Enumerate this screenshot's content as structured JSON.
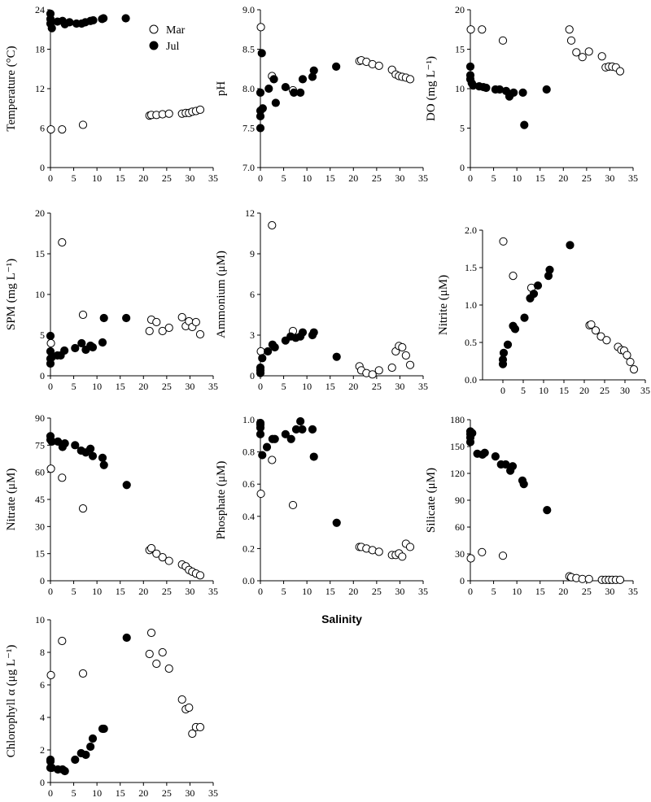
{
  "xlabel": "Salinity",
  "legend": {
    "mar_label": "Mar",
    "jul_label": "Jul"
  },
  "colors": {
    "mar_fill": "#ffffff",
    "jul_fill": "#000000",
    "stroke": "#000000"
  },
  "chart_data": [
    {
      "type": "scatter",
      "name": "temperature",
      "ylabel": "Temperature (°C)",
      "ylim": [
        0,
        24
      ],
      "yticks": [
        0,
        6,
        12,
        18,
        24
      ],
      "ytick_labels": [
        "0",
        "6",
        "12",
        "18",
        "24"
      ],
      "xlim": [
        0,
        35
      ],
      "xticks": [
        0,
        5,
        10,
        15,
        20,
        25,
        30,
        35
      ],
      "xtick_labels": [
        "0",
        "5",
        "10",
        "15",
        "20",
        "25",
        "30",
        "35"
      ],
      "series": [
        {
          "name": "Mar",
          "x": [
            0.1,
            2.5,
            7,
            21.3,
            21.7,
            22.8,
            24.1,
            25.5,
            28.3,
            29.1,
            29.8,
            30.5,
            31.3,
            32.2
          ],
          "y": [
            5.8,
            5.8,
            6.5,
            7.9,
            8.0,
            8.0,
            8.1,
            8.2,
            8.2,
            8.3,
            8.3,
            8.5,
            8.6,
            8.8
          ]
        },
        {
          "name": "Jul",
          "x": [
            0,
            0,
            0,
            0.3,
            1.5,
            2.6,
            3.1,
            4.1,
            5.6,
            6.7,
            7.5,
            8.6,
            9.2,
            11.1,
            11.4,
            16.2
          ],
          "y": [
            23.4,
            22.6,
            21.9,
            21.2,
            22.2,
            22.3,
            21.8,
            22.1,
            21.9,
            21.9,
            22.1,
            22.3,
            22.4,
            22.6,
            22.7,
            22.7
          ]
        }
      ]
    },
    {
      "type": "scatter",
      "name": "ph",
      "ylabel": "pH",
      "ylim": [
        7.0,
        9.0
      ],
      "yticks": [
        7.0,
        7.5,
        8.0,
        8.5,
        9.0
      ],
      "ytick_labels": [
        "7.0",
        "7.5",
        "8.0",
        "8.5",
        "9.0"
      ],
      "xlim": [
        0,
        35
      ],
      "xticks": [
        0,
        5,
        10,
        15,
        20,
        25,
        30,
        35
      ],
      "xtick_labels": [
        "0",
        "5",
        "10",
        "15",
        "20",
        "25",
        "30",
        "35"
      ],
      "series": [
        {
          "name": "Mar",
          "x": [
            0.1,
            2.5,
            7,
            21.3,
            21.7,
            22.8,
            24.1,
            25.5,
            28.3,
            29.1,
            29.8,
            30.5,
            31.3,
            32.2
          ],
          "y": [
            8.78,
            8.16,
            7.98,
            8.35,
            8.36,
            8.34,
            8.31,
            8.29,
            8.24,
            8.18,
            8.16,
            8.15,
            8.14,
            8.12
          ]
        },
        {
          "name": "Jul",
          "x": [
            0,
            0,
            0,
            0,
            0.3,
            0.5,
            1.8,
            2.9,
            3.3,
            5.4,
            7.2,
            8.6,
            9.1,
            11.2,
            11.5,
            16.3
          ],
          "y": [
            7.5,
            7.65,
            7.72,
            7.95,
            8.45,
            7.75,
            8.0,
            8.12,
            7.82,
            8.02,
            7.95,
            7.95,
            8.12,
            8.15,
            8.23,
            8.28
          ]
        }
      ]
    },
    {
      "type": "scatter",
      "name": "do",
      "ylabel": "DO (mg L⁻¹)",
      "ylim": [
        0,
        20
      ],
      "yticks": [
        0,
        5,
        10,
        15,
        20
      ],
      "ytick_labels": [
        "0",
        "5",
        "10",
        "15",
        "20"
      ],
      "xlim": [
        0,
        35
      ],
      "xticks": [
        0,
        5,
        10,
        15,
        20,
        25,
        30,
        35
      ],
      "xtick_labels": [
        "0",
        "5",
        "10",
        "15",
        "20",
        "25",
        "30",
        "35"
      ],
      "series": [
        {
          "name": "Mar",
          "x": [
            0.1,
            2.5,
            7,
            21.3,
            21.7,
            22.8,
            24.1,
            25.5,
            28.3,
            29.1,
            29.8,
            30.5,
            31.3,
            32.2
          ],
          "y": [
            17.5,
            17.5,
            16.1,
            17.5,
            16.1,
            14.6,
            14.0,
            14.7,
            14.1,
            12.7,
            12.8,
            12.8,
            12.7,
            12.2
          ]
        },
        {
          "name": "Jul",
          "x": [
            0,
            0,
            0,
            0.3,
            0.6,
            1.9,
            2.8,
            3.4,
            5.4,
            6.3,
            7.7,
            8.4,
            9.3,
            11.3,
            11.6,
            16.4
          ],
          "y": [
            12.8,
            11.7,
            11.2,
            10.7,
            10.4,
            10.3,
            10.2,
            10.1,
            9.9,
            9.9,
            9.7,
            9.0,
            9.5,
            9.5,
            5.4,
            9.9
          ]
        }
      ]
    },
    {
      "type": "scatter",
      "name": "spm",
      "ylabel": "SPM (mg L⁻¹)",
      "ylim": [
        0,
        20
      ],
      "yticks": [
        0,
        5,
        10,
        15,
        20
      ],
      "ytick_labels": [
        "0",
        "5",
        "10",
        "15",
        "20"
      ],
      "xlim": [
        0,
        35
      ],
      "xticks": [
        0,
        5,
        10,
        15,
        20,
        25,
        30,
        35
      ],
      "xtick_labels": [
        "0",
        "5",
        "10",
        "15",
        "20",
        "25",
        "30",
        "35"
      ],
      "series": [
        {
          "name": "Mar",
          "x": [
            0.1,
            2.5,
            7,
            21.3,
            21.7,
            22.8,
            24.1,
            25.5,
            28.3,
            29.1,
            29.8,
            30.5,
            31.3,
            32.2
          ],
          "y": [
            4.0,
            16.4,
            7.5,
            5.5,
            6.9,
            6.6,
            5.5,
            5.9,
            7.2,
            6.1,
            6.7,
            6.0,
            6.6,
            5.1
          ]
        },
        {
          "name": "Jul",
          "x": [
            0,
            0,
            0,
            0,
            0.3,
            1.5,
            2.2,
            3.0,
            5.3,
            6.7,
            7.6,
            8.6,
            9.1,
            11.2,
            11.5,
            16.3
          ],
          "y": [
            1.5,
            2.1,
            3.0,
            4.9,
            2.3,
            2.5,
            2.5,
            3.1,
            3.4,
            4.0,
            3.2,
            3.7,
            3.5,
            4.1,
            7.1,
            7.1
          ]
        }
      ]
    },
    {
      "type": "scatter",
      "name": "ammonium",
      "ylabel": "Ammonium (μM)",
      "ylim": [
        0,
        12
      ],
      "yticks": [
        0,
        3,
        6,
        9,
        12
      ],
      "ytick_labels": [
        "0",
        "3",
        "6",
        "9",
        "12"
      ],
      "xlim": [
        0,
        35
      ],
      "xticks": [
        0,
        5,
        10,
        15,
        20,
        25,
        30,
        35
      ],
      "xtick_labels": [
        "0",
        "5",
        "10",
        "15",
        "20",
        "25",
        "30",
        "35"
      ],
      "series": [
        {
          "name": "Mar",
          "x": [
            0.1,
            2.5,
            7,
            21.3,
            21.7,
            22.8,
            24.1,
            25.5,
            28.3,
            29.1,
            29.8,
            30.5,
            31.3,
            32.2
          ],
          "y": [
            1.8,
            11.1,
            3.3,
            0.7,
            0.4,
            0.2,
            0.1,
            0.4,
            0.6,
            1.8,
            2.2,
            2.1,
            1.5,
            0.8
          ]
        },
        {
          "name": "Jul",
          "x": [
            0,
            0,
            0,
            0.4,
            1.6,
            2.6,
            3.1,
            5.4,
            6.5,
            7.6,
            8.6,
            9.1,
            11.2,
            11.5,
            16.4
          ],
          "y": [
            0.2,
            0.4,
            0.6,
            1.3,
            1.8,
            2.3,
            2.1,
            2.6,
            2.9,
            2.8,
            2.9,
            3.2,
            3.0,
            3.2,
            1.4
          ]
        }
      ]
    },
    {
      "type": "scatter",
      "name": "nitrite",
      "ylabel": "Nitrite (μM)",
      "ylim": [
        0,
        2.0
      ],
      "yticks": [
        0,
        0.5,
        1.0,
        1.5,
        2.0
      ],
      "ytick_labels": [
        "0.0",
        "0.5",
        "1.0",
        "1.5",
        "2.0"
      ],
      "xlim": [
        -5,
        35
      ],
      "xticks": [
        0,
        5,
        10,
        15,
        20,
        25,
        30,
        35
      ],
      "xtick_labels": [
        "0",
        "5",
        "10",
        "15",
        "20",
        "25",
        "30",
        "35"
      ],
      "series": [
        {
          "name": "Mar",
          "x": [
            0.1,
            2.5,
            7,
            21.3,
            21.7,
            22.8,
            24.1,
            25.5,
            28.3,
            29.1,
            29.8,
            30.5,
            31.3,
            32.2
          ],
          "y": [
            1.85,
            1.39,
            1.23,
            0.73,
            0.74,
            0.66,
            0.58,
            0.53,
            0.44,
            0.4,
            0.39,
            0.33,
            0.24,
            0.14
          ]
        },
        {
          "name": "Jul",
          "x": [
            0,
            0,
            0.2,
            1.2,
            2.5,
            3.0,
            5.3,
            6.7,
            7.6,
            8.6,
            11.2,
            11.5,
            16.5
          ],
          "y": [
            0.21,
            0.27,
            0.36,
            0.47,
            0.72,
            0.68,
            0.83,
            1.09,
            1.15,
            1.26,
            1.39,
            1.47,
            1.8
          ]
        }
      ]
    },
    {
      "type": "scatter",
      "name": "nitrate",
      "ylabel": "Nitrate (μM)",
      "ylim": [
        0,
        90
      ],
      "yticks": [
        0,
        15,
        30,
        45,
        60,
        75,
        90
      ],
      "ytick_labels": [
        "0",
        "15",
        "30",
        "45",
        "60",
        "75",
        "90"
      ],
      "xlim": [
        0,
        35
      ],
      "xticks": [
        0,
        5,
        10,
        15,
        20,
        25,
        30,
        35
      ],
      "xtick_labels": [
        "0",
        "5",
        "10",
        "15",
        "20",
        "25",
        "30",
        "35"
      ],
      "series": [
        {
          "name": "Mar",
          "x": [
            0.1,
            2.5,
            7,
            21.3,
            21.7,
            22.8,
            24.1,
            25.5,
            28.3,
            29.1,
            29.8,
            30.5,
            31.3,
            32.2
          ],
          "y": [
            62,
            57,
            40,
            17,
            18,
            15,
            13,
            11,
            9,
            8,
            6,
            5,
            4,
            3
          ]
        },
        {
          "name": "Jul",
          "x": [
            0,
            0,
            0.3,
            1.6,
            2.6,
            3.1,
            5.3,
            6.6,
            7.6,
            8.6,
            9.1,
            11.2,
            11.5,
            16.4
          ],
          "y": [
            80,
            78,
            77,
            77,
            74,
            76,
            75,
            72,
            71,
            73,
            69,
            68,
            64,
            53
          ]
        }
      ]
    },
    {
      "type": "scatter",
      "name": "phosphate",
      "ylabel": "Phosphate (μM)",
      "ylim": [
        0,
        1.0
      ],
      "yticks": [
        0,
        0.2,
        0.4,
        0.6,
        0.8,
        1.0
      ],
      "ytick_labels": [
        "0.0",
        "0.2",
        "0.4",
        "0.6",
        "0.8",
        "1.0"
      ],
      "xlim": [
        0,
        35
      ],
      "xticks": [
        0,
        5,
        10,
        15,
        20,
        25,
        30,
        35
      ],
      "xtick_labels": [
        "0",
        "5",
        "10",
        "15",
        "20",
        "25",
        "30",
        "35"
      ],
      "series": [
        {
          "name": "Mar",
          "x": [
            0.1,
            2.5,
            7,
            21.3,
            21.7,
            22.8,
            24.1,
            25.5,
            28.3,
            29.1,
            29.8,
            30.5,
            31.3,
            32.2
          ],
          "y": [
            0.54,
            0.75,
            0.47,
            0.21,
            0.21,
            0.2,
            0.19,
            0.18,
            0.16,
            0.16,
            0.17,
            0.15,
            0.23,
            0.21
          ]
        },
        {
          "name": "Jul",
          "x": [
            0,
            0,
            0,
            0,
            0.4,
            1.4,
            2.6,
            3.1,
            5.4,
            6.6,
            7.7,
            8.6,
            9.0,
            11.2,
            11.5,
            16.4
          ],
          "y": [
            0.91,
            0.95,
            0.97,
            0.98,
            0.78,
            0.83,
            0.88,
            0.88,
            0.91,
            0.88,
            0.94,
            0.99,
            0.94,
            0.94,
            0.77,
            0.36
          ]
        }
      ]
    },
    {
      "type": "scatter",
      "name": "silicate",
      "ylabel": "Silicate (μM)",
      "ylim": [
        0,
        180
      ],
      "yticks": [
        0,
        30,
        60,
        90,
        120,
        150,
        180
      ],
      "ytick_labels": [
        "0",
        "30",
        "60",
        "90",
        "120",
        "150",
        "180"
      ],
      "xlim": [
        0,
        35
      ],
      "xticks": [
        0,
        5,
        10,
        15,
        20,
        25,
        30,
        35
      ],
      "xtick_labels": [
        "0",
        "5",
        "10",
        "15",
        "20",
        "25",
        "30",
        "35"
      ],
      "series": [
        {
          "name": "Mar",
          "x": [
            0.1,
            2.5,
            7,
            21.3,
            21.7,
            22.8,
            24.1,
            25.5,
            28.3,
            29.1,
            29.8,
            30.5,
            31.3,
            32.2
          ],
          "y": [
            25,
            32,
            28,
            5,
            4,
            3,
            2,
            2,
            1,
            1,
            1,
            1,
            1,
            1
          ]
        },
        {
          "name": "Jul",
          "x": [
            0,
            0,
            0,
            0,
            0.4,
            1.5,
            2.6,
            3.1,
            5.4,
            6.6,
            7.6,
            8.6,
            9.1,
            11.2,
            11.5,
            16.5
          ],
          "y": [
            155,
            160,
            164,
            167,
            165,
            142,
            141,
            143,
            139,
            130,
            130,
            123,
            128,
            112,
            108,
            79
          ]
        }
      ]
    },
    {
      "type": "scatter",
      "name": "chlorophyll",
      "ylabel": "Chlorophyll α (μg L⁻¹)",
      "ylim": [
        0,
        10
      ],
      "yticks": [
        0,
        2,
        4,
        6,
        8,
        10
      ],
      "ytick_labels": [
        "0",
        "2",
        "4",
        "6",
        "8",
        "10"
      ],
      "xlim": [
        0,
        35
      ],
      "xticks": [
        0,
        5,
        10,
        15,
        20,
        25,
        30,
        35
      ],
      "xtick_labels": [
        "0",
        "5",
        "10",
        "15",
        "20",
        "25",
        "30",
        "35"
      ],
      "series": [
        {
          "name": "Mar",
          "x": [
            0.1,
            2.5,
            7,
            21.3,
            21.7,
            22.8,
            24.1,
            25.5,
            28.3,
            29.1,
            29.8,
            30.5,
            31.3,
            32.2
          ],
          "y": [
            6.6,
            8.7,
            6.7,
            7.9,
            9.2,
            7.3,
            8.0,
            7.0,
            5.1,
            4.5,
            4.6,
            3.0,
            3.4,
            3.4
          ]
        },
        {
          "name": "Jul",
          "x": [
            0,
            0,
            0,
            0.3,
            1.6,
            2.6,
            3.1,
            5.3,
            6.6,
            7.6,
            8.6,
            9.1,
            11.2,
            11.5,
            16.4
          ],
          "y": [
            0.9,
            1.3,
            1.4,
            0.9,
            0.8,
            0.8,
            0.7,
            1.4,
            1.8,
            1.7,
            2.2,
            2.7,
            3.3,
            3.3,
            8.9
          ]
        }
      ]
    }
  ]
}
